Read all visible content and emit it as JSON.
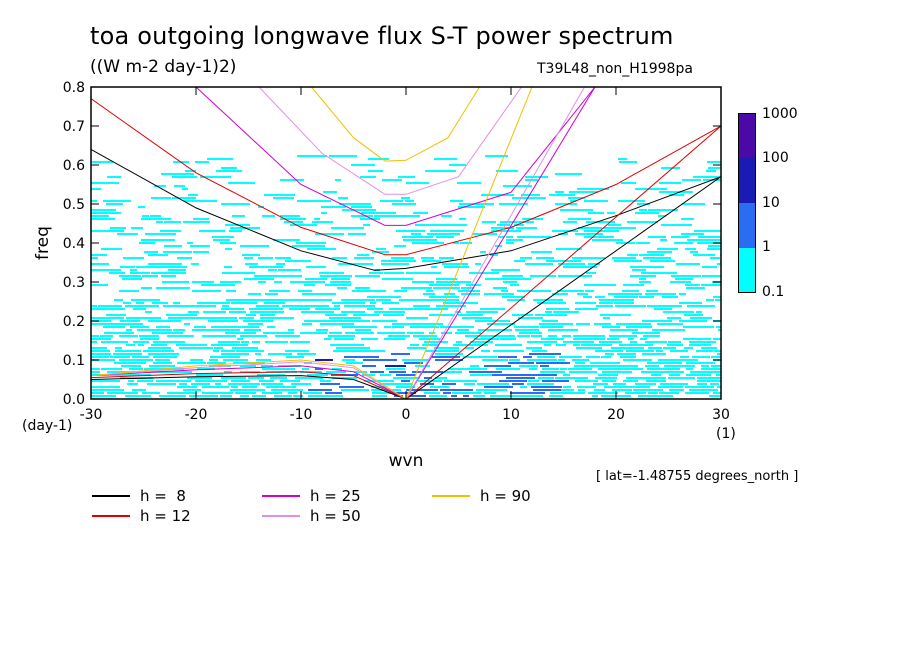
{
  "title": "toa outgoing longwave flux S-T power spectrum",
  "units": "((W m-2 day-1)2)",
  "experiment": "T39L48_non_H1998pa",
  "latitude_note": "[ lat=-1.48755 degrees_north ]",
  "colorbar": {
    "levels": [
      {
        "label": "1000",
        "color": "#4b0aa8"
      },
      {
        "label": "100",
        "color": "#1a1ab4"
      },
      {
        "label": "10",
        "color": "#2a6cf2"
      },
      {
        "label": "1",
        "color": "#00ffff"
      },
      {
        "label": "0.1",
        "color": ""
      }
    ]
  },
  "legend": [
    {
      "label": "h =  8",
      "color": "#000000"
    },
    {
      "label": "h = 12",
      "color": "#e00000"
    },
    {
      "label": "h = 25",
      "color": "#d000d0"
    },
    {
      "label": "h = 50",
      "color": "#e090e0"
    },
    {
      "label": "h = 90",
      "color": "#f0c000"
    }
  ],
  "chart_data": {
    "type": "heatmap",
    "xlabel": "wvn",
    "ylabel": "freq",
    "x_unit": "(1)",
    "y_unit": "(day-1)",
    "xlim": [
      -30,
      30
    ],
    "ylim": [
      0,
      0.8
    ],
    "x_ticks": [
      -30,
      -20,
      -10,
      0,
      10,
      20,
      30
    ],
    "y_ticks": [
      0.0,
      0.1,
      0.2,
      0.3,
      0.4,
      0.5,
      0.6,
      0.7,
      0.8
    ],
    "x_tick_labels": [
      "-30",
      "-20",
      "-10",
      "0",
      "10",
      "20",
      "30"
    ],
    "y_tick_labels": [
      "0.0",
      "0.1",
      "0.2",
      "0.3",
      "0.4",
      "0.5",
      "0.6",
      "0.7",
      "0.8"
    ],
    "shading_levels": [
      0.1,
      1,
      10,
      100,
      1000
    ],
    "dispersion_curves": [
      {
        "name": "h =  8",
        "color": "#000000",
        "kelvin": [
          [
            0,
            0
          ],
          [
            30,
            0.57
          ]
        ],
        "ig": [
          [
            -30,
            0.64
          ],
          [
            -20,
            0.49
          ],
          [
            -10,
            0.38
          ],
          [
            -3,
            0.33
          ],
          [
            0,
            0.335
          ],
          [
            10,
            0.38
          ],
          [
            20,
            0.47
          ],
          [
            30,
            0.57
          ]
        ],
        "rossby": [
          [
            -30,
            0.05
          ],
          [
            -20,
            0.057
          ],
          [
            -10,
            0.06
          ],
          [
            -5,
            0.05
          ],
          [
            0,
            0
          ]
        ]
      },
      {
        "name": "h = 12",
        "color": "#e00000",
        "kelvin": [
          [
            0,
            0
          ],
          [
            30,
            0.7
          ]
        ],
        "ig": [
          [
            -30,
            0.77
          ],
          [
            -20,
            0.58
          ],
          [
            -10,
            0.44
          ],
          [
            -2,
            0.37
          ],
          [
            0,
            0.37
          ],
          [
            10,
            0.44
          ],
          [
            20,
            0.55
          ],
          [
            30,
            0.7
          ]
        ],
        "rossby": [
          [
            -30,
            0.055
          ],
          [
            -20,
            0.065
          ],
          [
            -10,
            0.07
          ],
          [
            -5,
            0.06
          ],
          [
            0,
            0
          ]
        ]
      },
      {
        "name": "h = 25",
        "color": "#d000d0",
        "kelvin": [
          [
            0,
            0
          ],
          [
            18,
            0.8
          ]
        ],
        "ig": [
          [
            -20,
            0.8
          ],
          [
            -10,
            0.55
          ],
          [
            -2,
            0.445
          ],
          [
            0,
            0.445
          ],
          [
            10,
            0.53
          ],
          [
            18,
            0.8
          ]
        ],
        "rossby": [
          [
            -30,
            0.06
          ],
          [
            -20,
            0.075
          ],
          [
            -10,
            0.085
          ],
          [
            -5,
            0.07
          ],
          [
            0,
            0
          ]
        ]
      },
      {
        "name": "h = 50",
        "color": "#e090e0",
        "kelvin": [
          [
            0,
            0
          ],
          [
            17,
            0.8
          ]
        ],
        "ig": [
          [
            -14,
            0.8
          ],
          [
            -8,
            0.63
          ],
          [
            -2,
            0.525
          ],
          [
            0,
            0.525
          ],
          [
            5,
            0.57
          ],
          [
            11,
            0.8
          ]
        ],
        "rossby": [
          [
            -30,
            0.06
          ],
          [
            -20,
            0.08
          ],
          [
            -10,
            0.095
          ],
          [
            -5,
            0.08
          ],
          [
            0,
            0
          ]
        ]
      },
      {
        "name": "h = 90",
        "color": "#f0c000",
        "kelvin": [
          [
            0,
            0
          ],
          [
            12,
            0.8
          ]
        ],
        "ig": [
          [
            -9,
            0.8
          ],
          [
            -5,
            0.67
          ],
          [
            -2,
            0.61
          ],
          [
            0,
            0.612
          ],
          [
            4,
            0.67
          ],
          [
            7,
            0.8
          ]
        ],
        "rossby": [
          [
            -30,
            0.06
          ],
          [
            -20,
            0.085
          ],
          [
            -10,
            0.1
          ],
          [
            -5,
            0.085
          ],
          [
            0,
            0
          ]
        ]
      }
    ]
  }
}
